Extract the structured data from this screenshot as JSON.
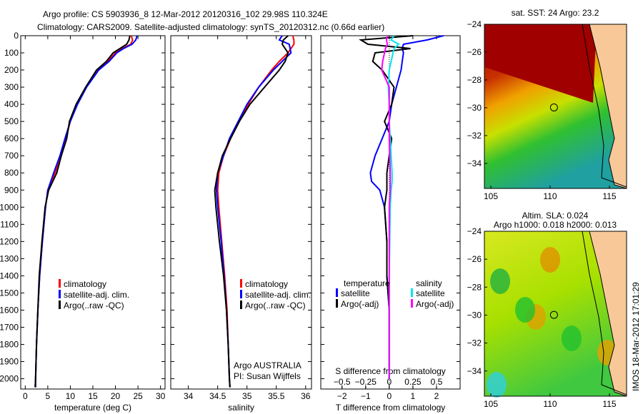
{
  "title_line1": "Argo profile: CS 5903936_8 12-Mar-2012 20120316_102 29.98S 110.324E",
  "title_line2": "Climatology: CARS2009. Satellite-adjusted climatology: synTS_20120312.nc (0.66d earlier)",
  "side_stamp": "IMOS 18-Mar-2012 17:01:29",
  "colors": {
    "climatology": "#ff0000",
    "satellite": "#0000ff",
    "argo": "#000000",
    "sal_sat": "#00e5ee",
    "sal_argo": "#ff00ff"
  },
  "chart_data": [
    {
      "type": "line",
      "xlabel": "temperature (deg C)",
      "ylabel": "",
      "xlim": [
        -1,
        31
      ],
      "ylim": [
        2060,
        0
      ],
      "xticks": [
        "0",
        "5",
        "10",
        "15",
        "20",
        "25",
        "30"
      ],
      "yticks": [
        "0",
        "100",
        "200",
        "300",
        "400",
        "500",
        "600",
        "700",
        "800",
        "900",
        "1000",
        "1100",
        "1200",
        "1300",
        "1400",
        "1500",
        "1600",
        "1700",
        "1800",
        "1900",
        "2000"
      ],
      "legend": [
        "climatology",
        "satellite-adj. clim.",
        "Argo(..raw -QC)"
      ],
      "depth": [
        0,
        25,
        50,
        75,
        100,
        150,
        200,
        300,
        400,
        500,
        600,
        700,
        800,
        900,
        1000,
        1200,
        1400,
        1600,
        1800,
        2000,
        2050
      ],
      "series": [
        {
          "name": "climatology",
          "values": [
            23.5,
            23.8,
            23.4,
            21.5,
            20,
            18.3,
            16,
            13.5,
            11.5,
            10,
            9,
            8,
            6.6,
            5,
            4.5,
            3.8,
            3.2,
            2.8,
            2.5,
            2.3,
            2.2
          ]
        },
        {
          "name": "satellite-adj. clim.",
          "values": [
            24.8,
            24.5,
            23.7,
            21.8,
            20.3,
            18.6,
            16.3,
            13.6,
            11.6,
            10,
            8.8,
            7.7,
            6.3,
            5,
            4.5,
            3.8,
            3.2,
            2.8,
            2.5,
            2.3,
            2.2
          ]
        },
        {
          "name": "Argo(..raw -QC)",
          "values": [
            23.2,
            23,
            22.5,
            21,
            19.5,
            18,
            15.8,
            13.4,
            11.3,
            9.8,
            9.2,
            8,
            7,
            5.2,
            4.4,
            3.7,
            3.1,
            2.8,
            2.5,
            2.3,
            2.3
          ]
        }
      ]
    },
    {
      "type": "line",
      "xlabel": "salinity",
      "xlim": [
        33.7,
        36.1
      ],
      "ylim": [
        2060,
        0
      ],
      "xticks": [
        "34",
        "34.5",
        "35",
        "35.5",
        "36"
      ],
      "legend": [
        "climatology",
        "satellite-adj. clim.",
        "Argo(..raw -QC)"
      ],
      "annotation": [
        "Argo AUSTRALIA",
        "PI: Susan Wijffels"
      ],
      "depth": [
        0,
        25,
        50,
        100,
        150,
        200,
        300,
        400,
        500,
        600,
        700,
        800,
        900,
        1000,
        1200,
        1400,
        1600,
        1800,
        2000,
        2050
      ],
      "series": [
        {
          "name": "climatology",
          "values": [
            35.78,
            35.8,
            35.8,
            35.7,
            35.55,
            35.42,
            35.2,
            35.02,
            34.87,
            34.72,
            34.6,
            34.52,
            34.5,
            34.52,
            34.57,
            34.62,
            34.66,
            34.68,
            34.7,
            34.71
          ]
        },
        {
          "name": "satellite-adj. clim.",
          "values": [
            35.6,
            35.55,
            35.72,
            35.75,
            35.6,
            35.45,
            35.2,
            35.0,
            34.85,
            34.7,
            34.6,
            34.5,
            34.48,
            34.5,
            34.56,
            34.61,
            34.65,
            34.68,
            34.7,
            34.71
          ]
        },
        {
          "name": "Argo(..raw -QC)",
          "values": [
            35.7,
            35.62,
            35.6,
            35.7,
            35.65,
            35.55,
            35.3,
            35.05,
            34.87,
            34.72,
            34.58,
            34.5,
            34.45,
            34.47,
            34.53,
            34.6,
            34.65,
            34.68,
            34.7,
            34.71
          ]
        }
      ]
    },
    {
      "type": "line",
      "xlabel": "T difference from climatology",
      "x2label": "S difference from climatology",
      "xlim": [
        -2.9,
        3.0
      ],
      "x2lim": [
        -0.725,
        0.75
      ],
      "ylim": [
        2060,
        0
      ],
      "xticks": [
        "-2",
        "-1",
        "0",
        "1",
        "2"
      ],
      "x2ticks": [
        "-0.5",
        "-0.25",
        "0",
        "0.25",
        "0.5"
      ],
      "legend_t_title": "temperature",
      "legend_s_title": "salinity",
      "legend_t": [
        "satellite",
        "Argo(-adj)"
      ],
      "legend_s": [
        "satellite",
        "Argo(-adj)"
      ],
      "depth": [
        0,
        25,
        50,
        75,
        100,
        150,
        200,
        300,
        400,
        500,
        600,
        700,
        800,
        850,
        900,
        1000,
        1200,
        1400,
        1600,
        1800,
        2000
      ],
      "series": [
        {
          "name": "T satellite",
          "axis": "T",
          "values": [
            2.3,
            1.6,
            0.6,
            0.55,
            0.6,
            0.55,
            0.5,
            0.3,
            0.1,
            0,
            -0.3,
            -0.6,
            -0.8,
            -0.75,
            -0.4,
            -0.2,
            -0.1,
            -0.1,
            0,
            0,
            0
          ]
        },
        {
          "name": "T Argo(-adj)",
          "axis": "T",
          "values": [
            1.0,
            -1.2,
            -0.9,
            0.9,
            -0.6,
            -0.7,
            -0.3,
            0.2,
            0.1,
            -0.2,
            0.1,
            0,
            -0.1,
            -0.1,
            -0.1,
            -0.2,
            -0.1,
            -0.1,
            0,
            0,
            0
          ]
        },
        {
          "name": "S satellite",
          "axis": "S",
          "values": [
            0.05,
            0.02,
            0.1,
            0.05,
            0.04,
            0.02,
            0,
            -0.01,
            0,
            0,
            0.01,
            0.02,
            0.03,
            0.03,
            0.02,
            0.01,
            0.005,
            0,
            0,
            0,
            0
          ]
        },
        {
          "name": "S Argo(-adj)",
          "axis": "S",
          "values": [
            -0.02,
            -0.03,
            -0.02,
            -0.04,
            -0.05,
            -0.07,
            -0.08,
            0,
            0,
            0,
            0,
            0.005,
            0.01,
            0.01,
            0.01,
            0,
            0,
            0,
            0,
            0,
            0
          ]
        }
      ]
    },
    {
      "type": "heatmap",
      "title": "sat. SST: 24 Argo: 23.2",
      "xticks": [
        "105",
        "110",
        "115"
      ],
      "yticks": [
        "-24",
        "-26",
        "-28",
        "-30",
        "-32",
        "-34"
      ],
      "marker": {
        "lon": 110.324,
        "lat": -29.98
      }
    },
    {
      "type": "heatmap",
      "title": "Altim. SLA: 0.024",
      "subtitle": "Argo h1000: 0.018 h2000: 0.013",
      "xticks": [
        "105",
        "110",
        "115"
      ],
      "yticks": [
        "-24",
        "-26",
        "-28",
        "-30",
        "-32",
        "-34"
      ],
      "marker": {
        "lon": 110.324,
        "lat": -29.98
      }
    }
  ]
}
